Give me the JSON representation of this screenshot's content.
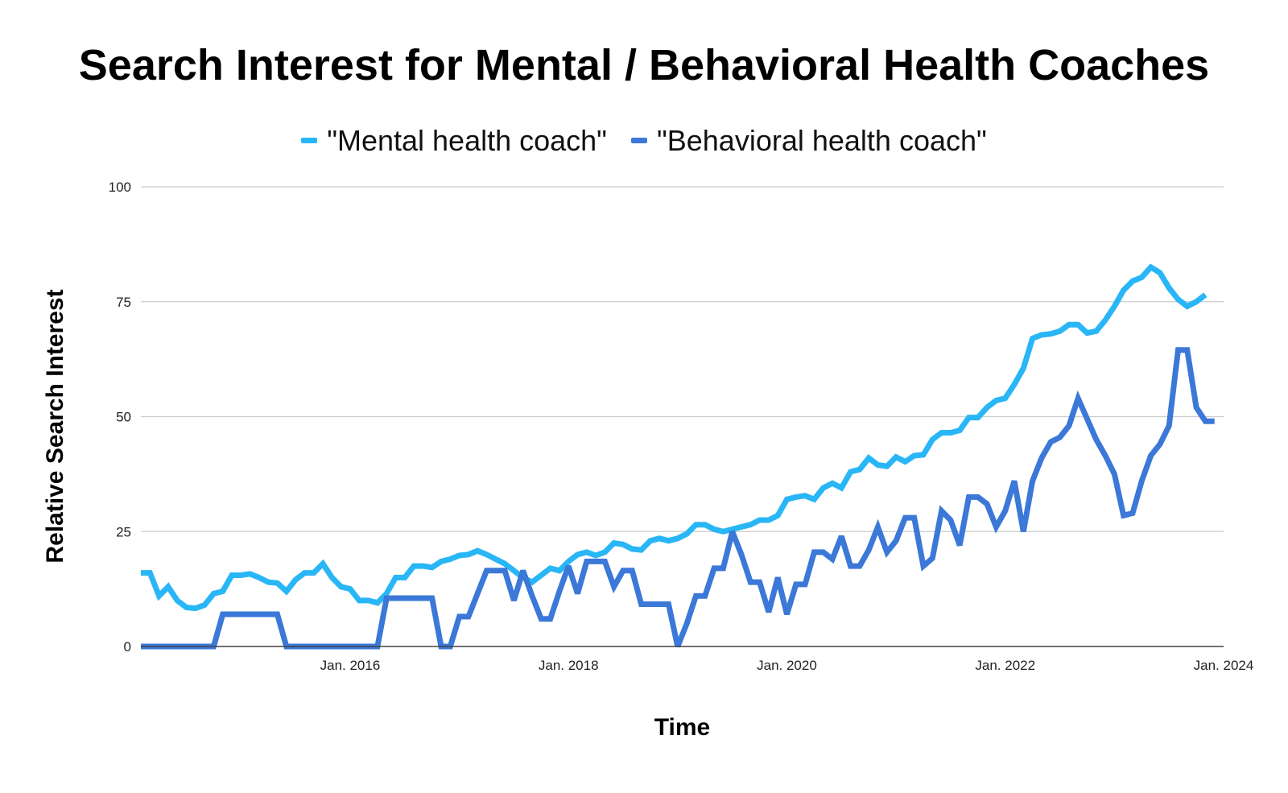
{
  "chart_data": {
    "type": "line",
    "title": "Search Interest for Mental / Behavioral Health Coaches",
    "xlabel": "Time",
    "ylabel": "Relative Search Interest",
    "ylim": [
      0,
      100
    ],
    "yticks": [
      0,
      25,
      50,
      75,
      100
    ],
    "xlim": [
      "2014-02",
      "2024-01"
    ],
    "xticks": [
      {
        "label": "Jan. 2016",
        "date": "2016-01"
      },
      {
        "label": "Jan. 2018",
        "date": "2018-01"
      },
      {
        "label": "Jan. 2020",
        "date": "2020-01"
      },
      {
        "label": "Jan. 2022",
        "date": "2022-01"
      },
      {
        "label": "Jan. 2024",
        "date": "2024-01"
      }
    ],
    "grid": true,
    "legend": "top",
    "series": [
      {
        "name": "\"Mental health coach\"",
        "color": "#29B6F6",
        "points": [
          [
            "2014-02",
            16
          ],
          [
            "2014-03",
            16
          ],
          [
            "2014-04",
            11
          ],
          [
            "2014-05",
            13
          ],
          [
            "2014-06",
            10
          ],
          [
            "2014-07",
            8.5
          ],
          [
            "2014-08",
            8.3
          ],
          [
            "2014-09",
            9
          ],
          [
            "2014-10",
            11.5
          ],
          [
            "2014-11",
            12
          ],
          [
            "2014-12",
            15.5
          ],
          [
            "2015-01",
            15.5
          ],
          [
            "2015-02",
            15.8
          ],
          [
            "2015-03",
            15
          ],
          [
            "2015-04",
            14
          ],
          [
            "2015-05",
            13.8
          ],
          [
            "2015-06",
            12
          ],
          [
            "2015-07",
            14.5
          ],
          [
            "2015-08",
            16
          ],
          [
            "2015-09",
            16
          ],
          [
            "2015-10",
            18
          ],
          [
            "2015-11",
            15
          ],
          [
            "2015-12",
            13
          ],
          [
            "2016-01",
            12.5
          ],
          [
            "2016-02",
            10
          ],
          [
            "2016-03",
            10
          ],
          [
            "2016-04",
            9.5
          ],
          [
            "2016-05",
            11.5
          ],
          [
            "2016-06",
            15
          ],
          [
            "2016-07",
            15
          ],
          [
            "2016-08",
            17.5
          ],
          [
            "2016-09",
            17.5
          ],
          [
            "2016-10",
            17.2
          ],
          [
            "2016-11",
            18.5
          ],
          [
            "2016-12",
            19
          ],
          [
            "2017-01",
            19.8
          ],
          [
            "2017-02",
            20
          ],
          [
            "2017-03",
            20.8
          ],
          [
            "2017-04",
            20
          ],
          [
            "2017-05",
            19
          ],
          [
            "2017-06",
            18
          ],
          [
            "2017-07",
            16.5
          ],
          [
            "2017-08",
            15
          ],
          [
            "2017-09",
            14
          ],
          [
            "2017-10",
            15.5
          ],
          [
            "2017-11",
            17
          ],
          [
            "2017-12",
            16.5
          ],
          [
            "2018-01",
            18.5
          ],
          [
            "2018-02",
            20
          ],
          [
            "2018-03",
            20.5
          ],
          [
            "2018-04",
            19.8
          ],
          [
            "2018-05",
            20.5
          ],
          [
            "2018-06",
            22.5
          ],
          [
            "2018-07",
            22.2
          ],
          [
            "2018-08",
            21.2
          ],
          [
            "2018-09",
            21
          ],
          [
            "2018-10",
            23
          ],
          [
            "2018-11",
            23.5
          ],
          [
            "2018-12",
            23
          ],
          [
            "2019-01",
            23.5
          ],
          [
            "2019-02",
            24.5
          ],
          [
            "2019-03",
            26.5
          ],
          [
            "2019-04",
            26.5
          ],
          [
            "2019-05",
            25.5
          ],
          [
            "2019-06",
            25
          ],
          [
            "2019-07",
            25.5
          ],
          [
            "2019-08",
            26
          ],
          [
            "2019-09",
            26.5
          ],
          [
            "2019-10",
            27.5
          ],
          [
            "2019-11",
            27.5
          ],
          [
            "2019-12",
            28.5
          ],
          [
            "2020-01",
            32
          ],
          [
            "2020-02",
            32.5
          ],
          [
            "2020-03",
            32.8
          ],
          [
            "2020-04",
            32
          ],
          [
            "2020-05",
            34.5
          ],
          [
            "2020-06",
            35.5
          ],
          [
            "2020-07",
            34.5
          ],
          [
            "2020-08",
            38
          ],
          [
            "2020-09",
            38.5
          ],
          [
            "2020-10",
            41
          ],
          [
            "2020-11",
            39.5
          ],
          [
            "2020-12",
            39.2
          ],
          [
            "2021-01",
            41.2
          ],
          [
            "2021-02",
            40.2
          ],
          [
            "2021-03",
            41.5
          ],
          [
            "2021-04",
            41.7
          ],
          [
            "2021-05",
            45
          ],
          [
            "2021-06",
            46.5
          ],
          [
            "2021-07",
            46.5
          ],
          [
            "2021-08",
            47
          ],
          [
            "2021-09",
            49.8
          ],
          [
            "2021-10",
            49.8
          ],
          [
            "2021-11",
            52
          ],
          [
            "2021-12",
            53.5
          ],
          [
            "2022-01",
            54
          ],
          [
            "2022-02",
            57
          ],
          [
            "2022-03",
            60.5
          ],
          [
            "2022-04",
            67
          ],
          [
            "2022-05",
            67.8
          ],
          [
            "2022-06",
            68
          ],
          [
            "2022-07",
            68.6
          ],
          [
            "2022-08",
            70
          ],
          [
            "2022-09",
            70
          ],
          [
            "2022-10",
            68.2
          ],
          [
            "2022-11",
            68.6
          ],
          [
            "2022-12",
            71
          ],
          [
            "2023-01",
            74
          ],
          [
            "2023-02",
            77.5
          ],
          [
            "2023-03",
            79.5
          ],
          [
            "2023-04",
            80.3
          ],
          [
            "2023-05",
            82.5
          ],
          [
            "2023-06",
            81.3
          ],
          [
            "2023-07",
            78
          ],
          [
            "2023-08",
            75.5
          ],
          [
            "2023-09",
            74
          ],
          [
            "2023-10",
            75
          ],
          [
            "2023-11",
            76.5
          ]
        ]
      },
      {
        "name": "\"Behavioral health coach\"",
        "color": "#3B78D8",
        "points": [
          [
            "2014-02",
            0
          ],
          [
            "2014-03",
            0
          ],
          [
            "2014-04",
            0
          ],
          [
            "2014-05",
            0
          ],
          [
            "2014-06",
            0
          ],
          [
            "2014-07",
            0
          ],
          [
            "2014-08",
            0
          ],
          [
            "2014-09",
            0
          ],
          [
            "2014-10",
            0
          ],
          [
            "2014-11",
            7
          ],
          [
            "2014-12",
            7
          ],
          [
            "2015-01",
            7
          ],
          [
            "2015-02",
            7
          ],
          [
            "2015-03",
            7
          ],
          [
            "2015-04",
            7
          ],
          [
            "2015-05",
            7
          ],
          [
            "2015-06",
            0
          ],
          [
            "2015-07",
            0
          ],
          [
            "2015-08",
            0
          ],
          [
            "2015-09",
            0
          ],
          [
            "2015-10",
            0
          ],
          [
            "2015-11",
            0
          ],
          [
            "2015-12",
            0
          ],
          [
            "2016-01",
            0
          ],
          [
            "2016-02",
            0
          ],
          [
            "2016-03",
            0
          ],
          [
            "2016-04",
            0
          ],
          [
            "2016-05",
            10.5
          ],
          [
            "2016-06",
            10.5
          ],
          [
            "2016-07",
            10.5
          ],
          [
            "2016-08",
            10.5
          ],
          [
            "2016-09",
            10.5
          ],
          [
            "2016-10",
            10.5
          ],
          [
            "2016-11",
            0
          ],
          [
            "2016-12",
            0
          ],
          [
            "2017-01",
            6.5
          ],
          [
            "2017-02",
            6.5
          ],
          [
            "2017-03",
            11.5
          ],
          [
            "2017-04",
            16.5
          ],
          [
            "2017-05",
            16.5
          ],
          [
            "2017-06",
            16.5
          ],
          [
            "2017-07",
            10
          ],
          [
            "2017-08",
            16.5
          ],
          [
            "2017-09",
            11
          ],
          [
            "2017-10",
            6
          ],
          [
            "2017-11",
            6
          ],
          [
            "2017-12",
            12
          ],
          [
            "2018-01",
            17.5
          ],
          [
            "2018-02",
            11.5
          ],
          [
            "2018-03",
            18.5
          ],
          [
            "2018-04",
            18.5
          ],
          [
            "2018-05",
            18.5
          ],
          [
            "2018-06",
            13
          ],
          [
            "2018-07",
            16.5
          ],
          [
            "2018-08",
            16.5
          ],
          [
            "2018-09",
            9.2
          ],
          [
            "2018-10",
            9.2
          ],
          [
            "2018-11",
            9.2
          ],
          [
            "2018-12",
            9.2
          ],
          [
            "2019-01",
            0
          ],
          [
            "2019-02",
            5
          ],
          [
            "2019-03",
            11
          ],
          [
            "2019-04",
            11
          ],
          [
            "2019-05",
            17
          ],
          [
            "2019-06",
            17
          ],
          [
            "2019-07",
            25
          ],
          [
            "2019-08",
            20
          ],
          [
            "2019-09",
            14
          ],
          [
            "2019-10",
            14
          ],
          [
            "2019-11",
            7.5
          ],
          [
            "2019-12",
            15
          ],
          [
            "2020-01",
            7
          ],
          [
            "2020-02",
            13.5
          ],
          [
            "2020-03",
            13.5
          ],
          [
            "2020-04",
            20.5
          ],
          [
            "2020-05",
            20.5
          ],
          [
            "2020-06",
            19
          ],
          [
            "2020-07",
            24
          ],
          [
            "2020-08",
            17.5
          ],
          [
            "2020-09",
            17.5
          ],
          [
            "2020-10",
            21
          ],
          [
            "2020-11",
            26
          ],
          [
            "2020-12",
            20.5
          ],
          [
            "2021-01",
            23
          ],
          [
            "2021-02",
            28
          ],
          [
            "2021-03",
            28
          ],
          [
            "2021-04",
            17.5
          ],
          [
            "2021-05",
            19.2
          ],
          [
            "2021-06",
            29.5
          ],
          [
            "2021-07",
            27.5
          ],
          [
            "2021-08",
            22
          ],
          [
            "2021-09",
            32.5
          ],
          [
            "2021-10",
            32.5
          ],
          [
            "2021-11",
            31
          ],
          [
            "2021-12",
            26
          ],
          [
            "2022-01",
            29.5
          ],
          [
            "2022-02",
            36
          ],
          [
            "2022-03",
            25
          ],
          [
            "2022-04",
            36
          ],
          [
            "2022-05",
            41
          ],
          [
            "2022-06",
            44.5
          ],
          [
            "2022-07",
            45.5
          ],
          [
            "2022-08",
            48
          ],
          [
            "2022-09",
            54
          ],
          [
            "2022-10",
            49.5
          ],
          [
            "2022-11",
            45
          ],
          [
            "2022-12",
            41.5
          ],
          [
            "2023-01",
            37.5
          ],
          [
            "2023-02",
            28.5
          ],
          [
            "2023-03",
            29
          ],
          [
            "2023-04",
            36
          ],
          [
            "2023-05",
            41.5
          ],
          [
            "2023-06",
            44
          ],
          [
            "2023-07",
            48
          ],
          [
            "2023-08",
            64.5
          ],
          [
            "2023-09",
            64.5
          ],
          [
            "2023-10",
            52
          ],
          [
            "2023-11",
            49
          ],
          [
            "2023-12",
            49
          ]
        ]
      }
    ]
  }
}
